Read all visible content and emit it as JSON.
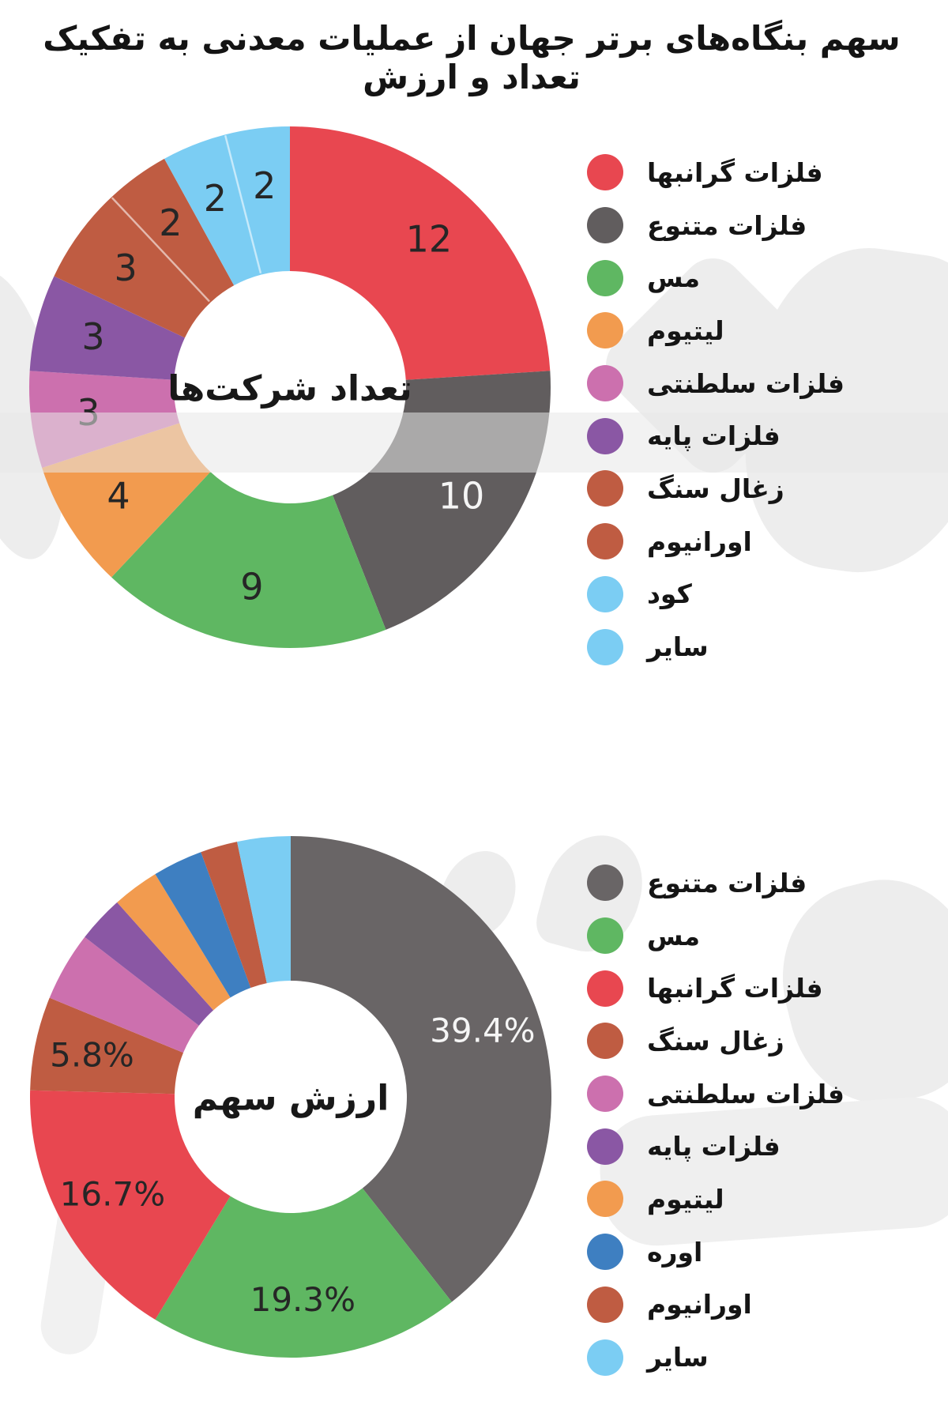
{
  "title": "سهم بنگاه‌های برتر جهان از عملیات معدنی  به تفکیک تعداد و ارزش",
  "chart_data": [
    {
      "type": "donut",
      "center_label": "تعداد شرکت‌ها",
      "direction": "clockwise",
      "start_angle_deg": 0,
      "legend_position": "right",
      "same_color_separator_before": [
        7,
        9
      ],
      "slices": [
        {
          "label": "فلزات گرانبها",
          "value": 12,
          "display": "12",
          "color": "#e84750",
          "value_label_color": "#262626"
        },
        {
          "label": "فلزات متنوع",
          "value": 10,
          "display": "10",
          "color": "#615d5e",
          "value_label_color": "#f5f5f5"
        },
        {
          "label": "مس",
          "value": 9,
          "display": "9",
          "color": "#5fb762",
          "value_label_color": "#262626"
        },
        {
          "label": "لیتیوم",
          "value": 4,
          "display": "4",
          "color": "#f29b4f",
          "value_label_color": "#262626"
        },
        {
          "label": "فلزات سلطنتی",
          "value": 3,
          "display": "3",
          "color": "#cc70ae",
          "value_label_color": "#262626"
        },
        {
          "label": "فلزات پایه",
          "value": 3,
          "display": "3",
          "color": "#8a57a4",
          "value_label_color": "#262626"
        },
        {
          "label": "زغال سنگ",
          "value": 3,
          "display": "3",
          "color": "#bf5c42",
          "value_label_color": "#262626"
        },
        {
          "label": "اورانیوم",
          "value": 2,
          "display": "2",
          "color": "#bf5c42",
          "value_label_color": "#262626"
        },
        {
          "label": "کود",
          "value": 2,
          "display": "2",
          "color": "#7bcdf3",
          "value_label_color": "#262626"
        },
        {
          "label": "سایر",
          "value": 2,
          "display": "2",
          "color": "#7bcdf3",
          "value_label_color": "#262626"
        }
      ]
    },
    {
      "type": "donut",
      "center_label": "ارزش سهم",
      "direction": "clockwise",
      "start_angle_deg": 0,
      "legend_position": "right",
      "same_color_separator_before": [],
      "slices": [
        {
          "label": "فلزات متنوع",
          "value": 39.4,
          "display": "39.4%",
          "color": "#696566",
          "value_label_color": "#f5f5f5"
        },
        {
          "label": "مس",
          "value": 19.3,
          "display": "19.3%",
          "color": "#5fb762",
          "value_label_color": "#262626"
        },
        {
          "label": "فلزات گرانبها",
          "value": 16.7,
          "display": "16.7%",
          "color": "#e84750",
          "value_label_color": "#262626"
        },
        {
          "label": "زغال سنگ",
          "value": 5.8,
          "display": "5.8%",
          "color": "#bf5c42",
          "value_label_color": "#262626"
        },
        {
          "label": "فلزات سلطنتی",
          "value": 4.3,
          "display": "",
          "color": "#cc70ae",
          "value_label_color": "#262626"
        },
        {
          "label": "فلزات پایه",
          "value": 2.9,
          "display": "",
          "color": "#8a57a4",
          "value_label_color": "#262626"
        },
        {
          "label": "لیتیوم",
          "value": 2.9,
          "display": "",
          "color": "#f29b4f",
          "value_label_color": "#262626"
        },
        {
          "label": "اوره",
          "value": 3.1,
          "display": "",
          "color": "#3e7fc1",
          "value_label_color": "#262626"
        },
        {
          "label": "اورانیوم",
          "value": 2.3,
          "display": "",
          "color": "#bf5c42",
          "value_label_color": "#262626"
        },
        {
          "label": "سایر",
          "value": 3.3,
          "display": "",
          "color": "#7bcdf3",
          "value_label_color": "#262626"
        }
      ]
    }
  ]
}
